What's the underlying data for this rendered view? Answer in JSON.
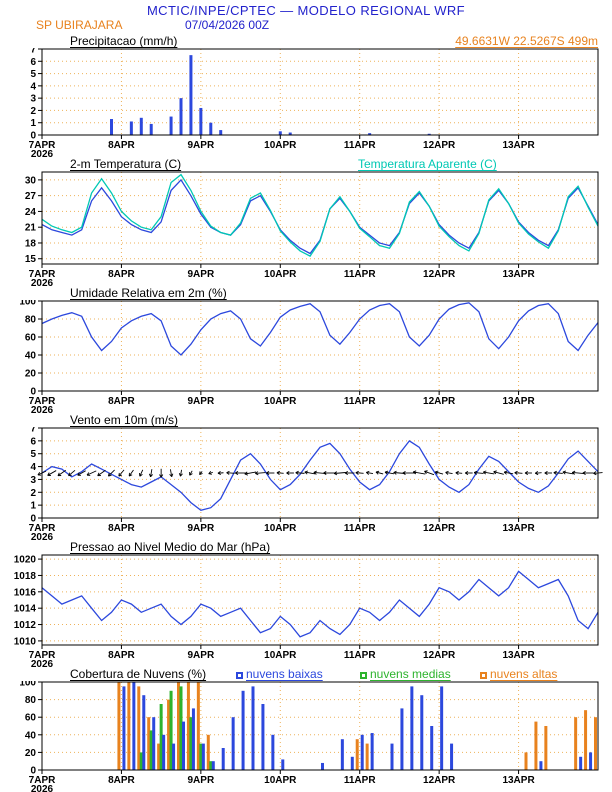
{
  "header": {
    "model_title": "MCTIC/INPE/CPTEC — MODELO REGIONAL WRF",
    "station": "SP UBIRAJARA",
    "run_datetime": "07/04/2026 00Z",
    "location": "49.6631W 22.5267S 499m"
  },
  "colors": {
    "title_blue": "#2222cc",
    "line_blue": "#2c48dd",
    "orange": "#e8821e",
    "cyan": "#00c8b4",
    "green": "#2db32d",
    "grid": "#eeb25a",
    "axis_black": "#000000"
  },
  "time": {
    "start_hour": 0,
    "end_hour": 168,
    "step_hours": 3,
    "tick_hours": [
      0,
      24,
      48,
      72,
      96,
      120,
      144
    ],
    "tick_labels": [
      "7APR",
      "8APR",
      "9APR",
      "10APR",
      "11APR",
      "12APR",
      "13APR"
    ],
    "year_label": "2026"
  },
  "chart_data": [
    {
      "id": "precip",
      "type": "bar",
      "title": "Precipitacao (mm/h)",
      "ylim": [
        0,
        7
      ],
      "yticks": [
        0,
        1,
        2,
        3,
        4,
        5,
        6,
        7
      ],
      "color_key": "line_blue",
      "values": [
        0,
        0,
        0,
        0,
        0,
        0,
        0,
        1.3,
        0,
        1.1,
        1.4,
        0.9,
        0,
        1.5,
        3.0,
        6.5,
        2.2,
        1.0,
        0.4,
        0,
        0,
        0,
        0,
        0,
        0.3,
        0.2,
        0,
        0,
        0,
        0,
        0,
        0,
        0,
        0.15,
        0,
        0,
        0,
        0,
        0,
        0.1,
        0,
        0,
        0,
        0,
        0,
        0,
        0,
        0,
        0,
        0,
        0,
        0,
        0,
        0,
        0,
        0,
        0
      ]
    },
    {
      "id": "temp",
      "type": "line",
      "title": "2-m Temperatura (C)",
      "legend": "Temperatura Aparente (C)",
      "ylim": [
        14,
        31.5
      ],
      "yticks": [
        15,
        18,
        21,
        24,
        27,
        30
      ],
      "series": [
        {
          "name": "2-m Temperatura (C)",
          "color_key": "line_blue",
          "values": [
            21.5,
            20.5,
            20.0,
            19.5,
            20.5,
            26.0,
            28.5,
            26.0,
            23.0,
            21.5,
            20.5,
            20.0,
            22.0,
            28.0,
            30.0,
            27.0,
            23.5,
            21.0,
            20.0,
            19.5,
            21.5,
            26.0,
            27.0,
            24.0,
            20.5,
            18.5,
            17.0,
            16.0,
            18.5,
            24.5,
            26.5,
            24.0,
            21.0,
            19.5,
            18.0,
            17.5,
            20.0,
            25.5,
            27.5,
            25.0,
            21.5,
            19.5,
            18.0,
            17.0,
            20.0,
            26.0,
            28.0,
            25.5,
            22.0,
            20.0,
            18.5,
            17.5,
            20.5,
            26.5,
            28.5,
            25.0,
            21.5
          ]
        },
        {
          "name": "Temperatura Aparente (C)",
          "color_key": "cyan",
          "values": [
            22.5,
            21.2,
            20.5,
            20.0,
            21.0,
            27.5,
            30.2,
            27.5,
            24.0,
            22.2,
            21.0,
            20.5,
            23.0,
            29.5,
            31.0,
            28.0,
            24.0,
            21.2,
            20.0,
            19.5,
            21.8,
            26.5,
            27.5,
            24.2,
            20.3,
            18.2,
            16.5,
            15.5,
            18.3,
            24.5,
            26.8,
            24.0,
            20.8,
            19.2,
            17.5,
            17.0,
            19.8,
            25.8,
            27.8,
            25.0,
            21.2,
            19.2,
            17.5,
            16.5,
            19.8,
            26.2,
            28.3,
            25.5,
            21.8,
            19.7,
            18.2,
            17.0,
            20.3,
            26.8,
            28.8,
            24.8,
            21.2
          ]
        }
      ]
    },
    {
      "id": "rh",
      "type": "line",
      "title": "Umidade Relativa em 2m (%)",
      "ylim": [
        0,
        100
      ],
      "yticks": [
        0,
        20,
        40,
        60,
        80,
        100
      ],
      "color_key": "line_blue",
      "values": [
        75,
        80,
        84,
        87,
        83,
        60,
        45,
        55,
        70,
        78,
        83,
        86,
        78,
        50,
        40,
        52,
        68,
        80,
        86,
        89,
        80,
        58,
        50,
        65,
        82,
        90,
        94,
        97,
        88,
        62,
        52,
        65,
        80,
        90,
        95,
        97,
        88,
        60,
        50,
        62,
        80,
        91,
        96,
        98,
        88,
        58,
        47,
        60,
        78,
        89,
        95,
        97,
        86,
        55,
        45,
        62,
        76
      ]
    },
    {
      "id": "wind",
      "type": "wind-line",
      "title": "Vento em 10m (m/s)",
      "ylim": [
        0,
        7
      ],
      "yticks": [
        0,
        1,
        2,
        3,
        4,
        5,
        6,
        7
      ],
      "color_key": "line_blue",
      "arrow_level": 3.5,
      "values": [
        3.5,
        4.0,
        3.8,
        3.2,
        3.6,
        4.2,
        3.8,
        3.4,
        3.0,
        2.6,
        2.4,
        2.8,
        3.2,
        2.6,
        2.0,
        1.2,
        0.6,
        0.8,
        1.5,
        3.0,
        4.5,
        5.0,
        4.2,
        3.0,
        2.2,
        2.6,
        3.4,
        4.5,
        5.5,
        5.8,
        5.0,
        3.8,
        2.8,
        2.2,
        2.6,
        3.6,
        5.0,
        6.0,
        5.5,
        4.2,
        3.0,
        2.4,
        2.0,
        2.6,
        3.8,
        4.8,
        4.4,
        3.6,
        2.8,
        2.3,
        2.0,
        2.5,
        3.5,
        4.6,
        5.2,
        4.4,
        3.6
      ],
      "arrow_dirs_deg": [
        205,
        210,
        215,
        220,
        210,
        205,
        215,
        225,
        230,
        235,
        245,
        260,
        270,
        280,
        260,
        240,
        230,
        200,
        185,
        175,
        180,
        190,
        185,
        180,
        175,
        180,
        175,
        170,
        175,
        180,
        185,
        180,
        175,
        170,
        165,
        170,
        175,
        180,
        170,
        160,
        165,
        170,
        175,
        180,
        175,
        170,
        165,
        170,
        175,
        180,
        185,
        180,
        175,
        170,
        175,
        180,
        185
      ]
    },
    {
      "id": "pres",
      "type": "line",
      "title": "Pressao ao Nivel Medio do Mar (hPa)",
      "ylim": [
        1009.5,
        1020.5
      ],
      "yticks": [
        1010,
        1012,
        1014,
        1016,
        1018,
        1020
      ],
      "color_key": "line_blue",
      "values": [
        1016.5,
        1015.5,
        1014.5,
        1015.0,
        1015.5,
        1014.0,
        1012.5,
        1013.5,
        1015.0,
        1014.5,
        1013.5,
        1014.0,
        1014.5,
        1013.0,
        1012.0,
        1013.0,
        1014.5,
        1014.0,
        1013.0,
        1013.5,
        1014.0,
        1012.5,
        1011.0,
        1011.5,
        1013.0,
        1012.0,
        1010.5,
        1011.0,
        1012.5,
        1011.5,
        1010.8,
        1012.0,
        1014.0,
        1013.5,
        1012.5,
        1013.5,
        1015.0,
        1014.0,
        1013.0,
        1014.5,
        1016.5,
        1016.0,
        1015.0,
        1016.0,
        1017.5,
        1016.5,
        1015.5,
        1016.5,
        1018.5,
        1017.5,
        1016.5,
        1017.0,
        1017.5,
        1015.5,
        1012.5,
        1011.5,
        1013.5
      ]
    },
    {
      "id": "clouds",
      "type": "bar-multi",
      "title": "Cobertura de Nuvens (%)",
      "ylim": [
        0,
        100
      ],
      "yticks": [
        0,
        20,
        40,
        60,
        80,
        100
      ],
      "series": [
        {
          "label": "nuvens baixas",
          "color_key": "line_blue",
          "values": [
            0,
            0,
            0,
            0,
            0,
            0,
            0,
            0,
            95,
            100,
            85,
            60,
            40,
            30,
            55,
            70,
            30,
            10,
            25,
            60,
            90,
            95,
            75,
            40,
            12,
            0,
            0,
            0,
            8,
            0,
            35,
            15,
            40,
            42,
            0,
            30,
            70,
            95,
            85,
            50,
            95,
            30,
            0,
            0,
            0,
            0,
            0,
            0,
            0,
            0,
            10,
            0,
            0,
            0,
            15,
            20,
            0
          ]
        },
        {
          "label": "nuvens medias",
          "color_key": "green",
          "values": [
            0,
            0,
            0,
            0,
            0,
            0,
            0,
            0,
            0,
            0,
            20,
            45,
            75,
            90,
            95,
            60,
            30,
            10,
            0,
            0,
            0,
            0,
            0,
            0,
            0,
            0,
            0,
            0,
            0,
            0,
            0,
            0,
            0,
            0,
            0,
            0,
            0,
            0,
            0,
            0,
            0,
            0,
            0,
            0,
            0,
            0,
            0,
            0,
            0,
            0,
            0,
            0,
            0,
            0,
            0,
            0,
            0
          ]
        },
        {
          "label": "nuvens altas",
          "color_key": "orange",
          "values": [
            0,
            0,
            0,
            0,
            0,
            0,
            0,
            0,
            100,
            100,
            95,
            60,
            30,
            80,
            100,
            100,
            100,
            40,
            0,
            0,
            0,
            0,
            0,
            0,
            0,
            0,
            0,
            0,
            0,
            0,
            0,
            0,
            35,
            30,
            0,
            0,
            0,
            0,
            0,
            0,
            0,
            0,
            0,
            0,
            0,
            0,
            0,
            0,
            0,
            20,
            55,
            50,
            0,
            0,
            60,
            68,
            60
          ]
        }
      ]
    }
  ]
}
